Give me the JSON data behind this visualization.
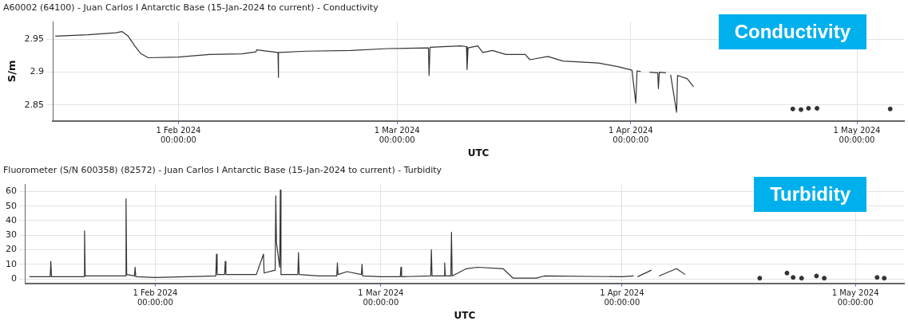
{
  "chart_data": [
    {
      "type": "line",
      "title": "A60002 (64100) - Juan Carlos I Antarctic Base (15-Jan-2024 to current) - Conductivity",
      "xlabel": "UTC",
      "ylabel": "S/m",
      "annotations": [
        "Conductivity"
      ],
      "xlim": [
        "2024-01-15T08:00",
        "2024-05-07T06:00"
      ],
      "xticks": [
        {
          "value": "2024-02-01",
          "label": "1 Feb 2024\n00:00:00"
        },
        {
          "value": "2024-03-01",
          "label": "1 Mar 2024\n00:00:00"
        },
        {
          "value": "2024-04-01",
          "label": "1 Apr 2024\n00:00:00"
        },
        {
          "value": "2024-05-01",
          "label": "1 May 2024\n00:00:00"
        }
      ],
      "ylim": [
        2.826,
        2.977
      ],
      "yticks": [
        2.85,
        2.9,
        2.95
      ],
      "grid": true,
      "legend": false,
      "marker": "none",
      "line_style": "solid",
      "series": [
        {
          "color": "#333333",
          "x": [
            "2024-01-15T16:00",
            "2024-01-20",
            "2024-01-23T17:00",
            "2024-01-24T12:00",
            "2024-01-25T08:00",
            "2024-01-26T05:00",
            "2024-01-27T01:00",
            "2024-01-28",
            "2024-02-01",
            "2024-02-05T02:00",
            "2024-02-09T09:00",
            "2024-02-11T07:00",
            "2024-02-11T09:00",
            "2024-02-14T05:00",
            "2024-02-14T06:00",
            "2024-02-14T07:00",
            "2024-02-18",
            "2024-02-23T21:00",
            "2024-02-28T17:00",
            "2024-03-05T04:00",
            "2024-03-05T06:00",
            "2024-03-05T09:00",
            "2024-03-09T10:00",
            "2024-03-10T05:00",
            "2024-03-10T07:00",
            "2024-03-10T10:00",
            "2024-03-11T17:00",
            "2024-03-12T09:00",
            "2024-03-13T16:00",
            "2024-03-15T10:00",
            "2024-03-18",
            "2024-03-18T15:00",
            "2024-03-21",
            "2024-03-23",
            "2024-03-27T17:00",
            "2024-03-30T12:00",
            "2024-04-01T04:00",
            "2024-04-01T16:00",
            "2024-04-01T20:00",
            "2024-04-02T08:00",
            "2024-04-03T00:00",
            "2024-04-03T12:00",
            "2024-04-04T14:00",
            "2024-04-04T16:00",
            "2024-04-04T19:00",
            "2024-04-05T16:00",
            "2024-04-06T00:00",
            "2024-04-06T07:00",
            "2024-04-07T02:00",
            "2024-04-07T05:00",
            "2024-04-08T12:00",
            "2024-04-09T08:00"
          ],
          "values": [
            2.955,
            2.957,
            2.96,
            2.962,
            2.955,
            2.94,
            2.928,
            2.922,
            2.923,
            2.927,
            2.928,
            2.931,
            2.934,
            2.93,
            2.892,
            2.93,
            2.932,
            2.933,
            2.936,
            2.937,
            2.895,
            2.938,
            2.94,
            2.939,
            2.904,
            2.937,
            2.94,
            2.93,
            2.933,
            2.927,
            2.927,
            2.919,
            2.924,
            2.917,
            2.914,
            2.908,
            2.903,
            2.853,
            2.902,
            2.901,
            null,
            2.9,
            2.899,
            2.875,
            2.9,
            2.899,
            null,
            2.896,
            2.839,
            2.895,
            2.89,
            2.878
          ]
        },
        {
          "type": "scatter",
          "marker": "circle",
          "color": "#333333",
          "x": [
            "2024-04-22T12:00",
            "2024-04-23T14:00",
            "2024-04-24T14:00",
            "2024-04-25T17:00",
            "2024-05-05T10:00"
          ],
          "values": [
            2.844,
            2.843,
            2.845,
            2.845,
            2.844
          ]
        }
      ]
    },
    {
      "type": "line",
      "title": "Fluorometer (S/N 600358) (82572) - Juan Carlos I Antarctic Base (15-Jan-2024 to current) - Turbidity",
      "xlabel": "UTC",
      "annotations": [
        "Turbidity"
      ],
      "xlim": [
        "2024-01-15T08:00",
        "2024-05-07T06:00"
      ],
      "xticks": [
        {
          "value": "2024-02-01",
          "label": "1 Feb 2024\n00:00:00"
        },
        {
          "value": "2024-03-01",
          "label": "1 Mar 2024\n00:00:00"
        },
        {
          "value": "2024-04-01",
          "label": "1 Apr 2024\n00:00:00"
        },
        {
          "value": "2024-05-01",
          "label": "1 May 2024\n00:00:00"
        }
      ],
      "ylim": [
        -3,
        65
      ],
      "yticks": [
        0,
        10,
        20,
        30,
        40,
        50,
        60
      ],
      "grid": true,
      "legend": false,
      "marker": "none",
      "line_style": "solid",
      "series": [
        {
          "color": "#333333",
          "x": [
            "2024-01-15T20:00",
            "2024-01-18T12:00",
            "2024-01-18T14:00",
            "2024-01-18T16:00",
            "2024-01-22T20:00",
            "2024-01-22T22:00",
            "2024-01-23T00:00",
            "2024-01-28T04:00",
            "2024-01-28T06:00",
            "2024-01-28T08:00",
            "2024-01-29T08:00",
            "2024-01-29T10:00",
            "2024-01-29T12:00",
            "2024-02-01",
            "2024-02-05",
            "2024-02-08T19:00",
            "2024-02-08T21:00",
            "2024-02-08T23:00",
            "2024-02-09T22:00",
            "2024-02-10T00:00",
            "2024-02-10T02:00",
            "2024-02-14",
            "2024-02-14T22:00",
            "2024-02-15",
            "2024-02-16T10:00",
            "2024-02-16T12:00",
            "2024-02-16T14:00",
            "2024-02-17T00:00",
            "2024-02-17T02:00",
            "2024-02-17T04:00",
            "2024-02-19T08:00",
            "2024-02-19T10:00",
            "2024-02-19T12:00",
            "2024-02-22",
            "2024-02-24T08:00",
            "2024-02-24T10:00",
            "2024-02-24T12:00",
            "2024-02-25T16:00",
            "2024-02-27T12:00",
            "2024-02-27T14:00",
            "2024-02-27T16:00",
            "2024-03-01",
            "2024-03-03T12:00",
            "2024-03-03T14:00",
            "2024-03-03T16:00",
            "2024-03-07T10:00",
            "2024-03-07T12:00",
            "2024-03-07T14:00",
            "2024-03-09T03:00",
            "2024-03-09T05:00",
            "2024-03-09T07:00",
            "2024-03-10T00:00",
            "2024-03-10T02:00",
            "2024-03-10T04:00",
            "2024-03-12",
            "2024-03-13T10:00",
            "2024-03-16T17:00",
            "2024-03-18",
            "2024-03-21",
            "2024-03-22",
            "2024-04-01",
            "2024-04-02T12:00",
            "2024-04-02T18:00",
            "2024-04-03",
            "2024-04-04T19:00",
            "2024-04-05T06:00",
            "2024-04-05T18:00",
            "2024-04-08",
            "2024-04-09T03:00"
          ],
          "values": [
            1.5,
            1.5,
            12,
            1.5,
            1.5,
            33,
            2,
            2,
            55,
            3,
            2,
            8,
            1.5,
            1,
            1.5,
            2,
            17,
            3,
            3,
            12,
            3,
            3,
            17,
            4,
            6,
            57,
            25,
            8,
            61,
            3,
            3,
            18,
            3,
            2,
            2,
            11,
            3,
            5,
            3,
            10,
            2,
            1.5,
            1.5,
            8,
            1.5,
            2,
            20,
            2,
            2,
            11,
            2,
            2,
            32,
            2,
            7,
            8,
            7,
            0.5,
            0.5,
            2,
            1.5,
            2,
            null,
            1.5,
            6,
            null,
            2,
            7,
            3
          ]
        },
        {
          "type": "scatter",
          "marker": "circle",
          "color": "#333333",
          "x": [
            "2024-04-18T17:00",
            "2024-04-22T05:00",
            "2024-04-23",
            "2024-04-24T02:00",
            "2024-04-26",
            "2024-04-27",
            "2024-05-03T19:00",
            "2024-05-04T17:00"
          ],
          "values": [
            0.5,
            4,
            1,
            0.5,
            2,
            0.5,
            1,
            0.5
          ]
        }
      ]
    }
  ]
}
